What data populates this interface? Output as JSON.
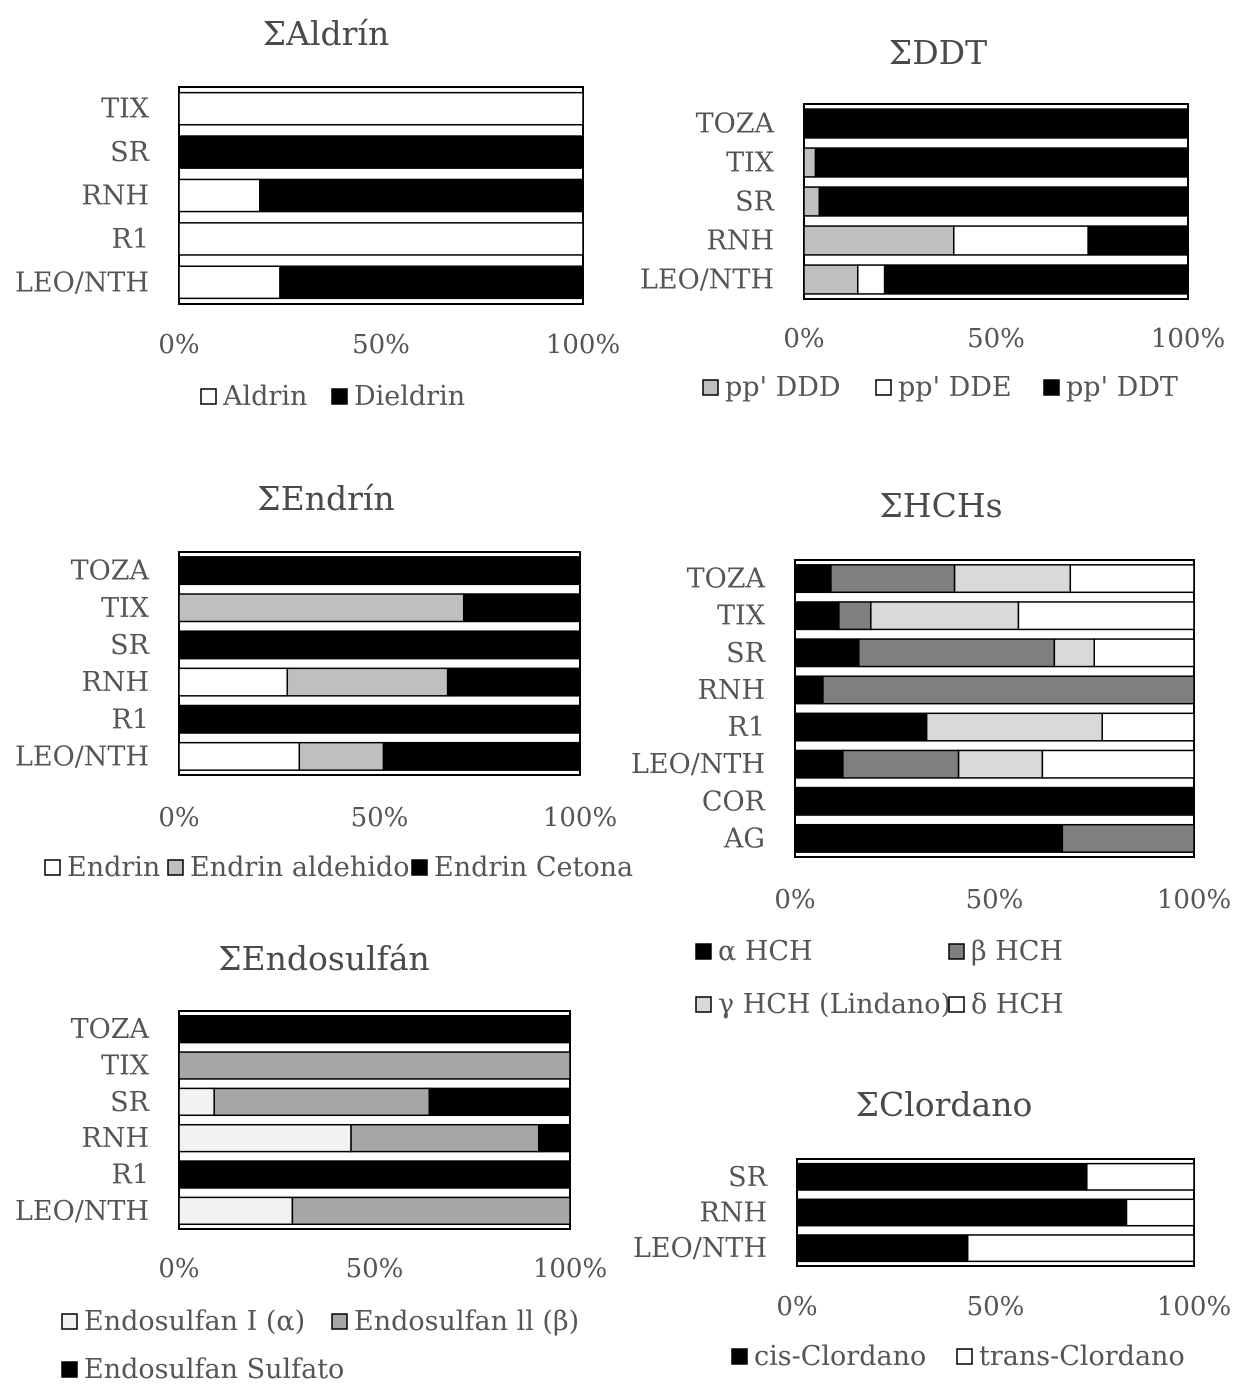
{
  "charts": [
    {
      "type": "bar",
      "stacked": true,
      "orientation": "horizontal",
      "title": "ΣAldrín",
      "categories": [
        "TIX",
        "SR",
        "RNH",
        "R1",
        "LEO/NTH"
      ],
      "xlim": [
        0,
        100
      ],
      "xticks": [
        "0%",
        "50%",
        "100%"
      ],
      "series": [
        {
          "name": "Aldrin",
          "color": "#ffffff",
          "values": [
            100,
            0,
            20,
            100,
            25
          ]
        },
        {
          "name": "Dieldrin",
          "color": "#000000",
          "values": [
            0,
            100,
            80,
            0,
            75
          ]
        }
      ],
      "legend_position": "bottom"
    },
    {
      "type": "bar",
      "stacked": true,
      "orientation": "horizontal",
      "title": "ΣDDT",
      "categories": [
        "TOZA",
        "TIX",
        "SR",
        "RNH",
        "LEO/NTH"
      ],
      "xlim": [
        0,
        100
      ],
      "xticks": [
        "0%",
        "50%",
        "100%"
      ],
      "series": [
        {
          "name": "pp' DDD",
          "color": "#bfbfbf",
          "values": [
            0,
            3,
            4,
            39,
            14
          ]
        },
        {
          "name": "pp' DDE",
          "color": "#ffffff",
          "values": [
            0,
            0,
            0,
            35,
            7
          ]
        },
        {
          "name": "pp' DDT",
          "color": "#000000",
          "values": [
            100,
            97,
            96,
            26,
            79
          ]
        }
      ],
      "legend_position": "bottom"
    },
    {
      "type": "bar",
      "stacked": true,
      "orientation": "horizontal",
      "title": "ΣEndrín",
      "categories": [
        "TOZA",
        "TIX",
        "SR",
        "RNH",
        "R1",
        "LEO/NTH"
      ],
      "xlim": [
        0,
        100
      ],
      "xticks": [
        "0%",
        "50%",
        "100%"
      ],
      "series": [
        {
          "name": "Endrin",
          "color": "#ffffff",
          "values": [
            0,
            0,
            0,
            27,
            0,
            30
          ]
        },
        {
          "name": "Endrin aldehido",
          "color": "#bfbfbf",
          "values": [
            0,
            71,
            0,
            40,
            0,
            21
          ]
        },
        {
          "name": "Endrin Cetona",
          "color": "#000000",
          "values": [
            100,
            29,
            100,
            33,
            100,
            49
          ]
        }
      ],
      "legend_position": "bottom"
    },
    {
      "type": "bar",
      "stacked": true,
      "orientation": "horizontal",
      "title": "ΣHCHs",
      "categories": [
        "TOZA",
        "TIX",
        "SR",
        "RNH",
        "R1",
        "LEO/NTH",
        "COR",
        "AG"
      ],
      "xlim": [
        0,
        100
      ],
      "xticks": [
        "0%",
        "50%",
        "100%"
      ],
      "series": [
        {
          "name": "α HCH",
          "color": "#000000",
          "values": [
            9,
            11,
            16,
            7,
            33,
            12,
            100,
            67
          ]
        },
        {
          "name": "β HCH",
          "color": "#7f7f7f",
          "values": [
            31,
            8,
            49,
            93,
            0,
            29,
            0,
            33
          ]
        },
        {
          "name": "γ HCH (Lindano)",
          "color": "#d9d9d9",
          "values": [
            29,
            37,
            10,
            0,
            44,
            21,
            0,
            0
          ]
        },
        {
          "name": "δ HCH",
          "color": "#ffffff",
          "values": [
            31,
            44,
            25,
            0,
            23,
            38,
            0,
            0
          ]
        }
      ],
      "legend_position": "bottom"
    },
    {
      "type": "bar",
      "stacked": true,
      "orientation": "horizontal",
      "title": "ΣEndosulfán",
      "categories": [
        "TOZA",
        "TIX",
        "SR",
        "RNH",
        "R1",
        "LEO/NTH"
      ],
      "xlim": [
        0,
        100
      ],
      "xticks": [
        "0%",
        "50%",
        "100%"
      ],
      "series": [
        {
          "name": "Endosulfan I (α)",
          "color": "#f2f2f2",
          "values": [
            0,
            0,
            9,
            44,
            0,
            29
          ]
        },
        {
          "name": "Endosulfan ll (β)",
          "color": "#a6a6a6",
          "values": [
            0,
            100,
            55,
            48,
            0,
            71
          ]
        },
        {
          "name": "Endosulfan Sulfato",
          "color": "#000000",
          "values": [
            100,
            0,
            36,
            8,
            100,
            0
          ]
        }
      ],
      "legend_position": "bottom"
    },
    {
      "type": "bar",
      "stacked": true,
      "orientation": "horizontal",
      "title": "ΣClordano",
      "categories": [
        "SR",
        "RNH",
        "LEO/NTH"
      ],
      "xlim": [
        0,
        100
      ],
      "xticks": [
        "0%",
        "50%",
        "100%"
      ],
      "series": [
        {
          "name": "cis-Clordano",
          "color": "#000000",
          "values": [
            73,
            83,
            43
          ]
        },
        {
          "name": "trans-Clordano",
          "color": "#ffffff",
          "values": [
            27,
            17,
            57
          ]
        }
      ],
      "legend_position": "bottom"
    }
  ]
}
